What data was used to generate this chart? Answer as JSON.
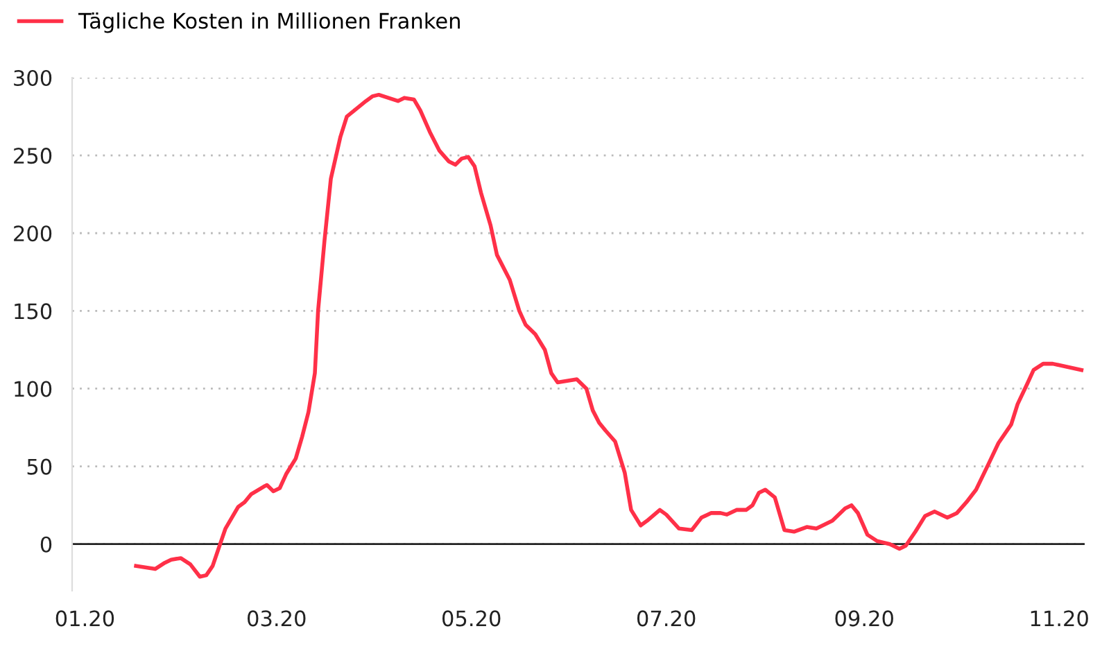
{
  "chart_data": {
    "type": "line",
    "legend": "top left",
    "grid": "y",
    "line_style": "solid",
    "marker": "none",
    "x": [
      "2020-01-17",
      "2020-01-23",
      "2020-01-26",
      "2020-01-28",
      "2020-01-31",
      "2020-02-03",
      "2020-02-06",
      "2020-02-08",
      "2020-02-10",
      "2020-02-12",
      "2020-02-14",
      "2020-02-18",
      "2020-02-20",
      "2020-02-22",
      "2020-02-26",
      "2020-02-27",
      "2020-02-29",
      "2020-03-02",
      "2020-03-04",
      "2020-03-07",
      "2020-03-09",
      "2020-03-11",
      "2020-03-13",
      "2020-03-14",
      "2020-03-16",
      "2020-03-18",
      "2020-03-21",
      "2020-03-23",
      "2020-03-26",
      "2020-03-29",
      "2020-03-31",
      "2020-04-02",
      "2020-04-05",
      "2020-04-08",
      "2020-04-10",
      "2020-04-13",
      "2020-04-15",
      "2020-04-18",
      "2020-04-21",
      "2020-04-24",
      "2020-04-26",
      "2020-04-28",
      "2020-04-30",
      "2020-05-02",
      "2020-05-04",
      "2020-05-07",
      "2020-05-09",
      "2020-05-13",
      "2020-05-16",
      "2020-05-18",
      "2020-05-21",
      "2020-05-24",
      "2020-05-26",
      "2020-05-28",
      "2020-05-31",
      "2020-06-03",
      "2020-06-06",
      "2020-06-08",
      "2020-06-10",
      "2020-06-12",
      "2020-06-15",
      "2020-06-18",
      "2020-06-20",
      "2020-06-23",
      "2020-06-25",
      "2020-06-29",
      "2020-07-01",
      "2020-07-05",
      "2020-07-09",
      "2020-07-12",
      "2020-07-15",
      "2020-07-18",
      "2020-07-20",
      "2020-07-23",
      "2020-07-26",
      "2020-07-28",
      "2020-07-30",
      "2020-08-01",
      "2020-08-04",
      "2020-08-07",
      "2020-08-10",
      "2020-08-14",
      "2020-08-17",
      "2020-08-20",
      "2020-08-22",
      "2020-08-26",
      "2020-08-28",
      "2020-08-30",
      "2020-09-02",
      "2020-09-05",
      "2020-09-09",
      "2020-09-12",
      "2020-09-14",
      "2020-09-17",
      "2020-09-20",
      "2020-09-23",
      "2020-09-27",
      "2020-09-30",
      "2020-10-03",
      "2020-10-06",
      "2020-10-10",
      "2020-10-13",
      "2020-10-17",
      "2020-10-19",
      "2020-10-22",
      "2020-10-24",
      "2020-10-27",
      "2020-10-30",
      "2020-11-08"
    ],
    "series": [
      {
        "name": "Tägliche Kosten in Millionen Franken",
        "color": "#ff3048",
        "values": [
          -14,
          -16,
          -12,
          -10,
          -9,
          -13,
          -21,
          -20,
          -14,
          -2,
          10,
          24,
          27,
          32,
          37,
          38,
          34,
          36,
          45,
          55,
          69,
          85,
          110,
          150,
          195,
          235,
          262,
          275,
          280,
          285,
          288,
          289,
          287,
          285,
          287,
          286,
          279,
          265,
          253,
          246,
          244,
          248,
          249,
          243,
          226,
          205,
          186,
          170,
          150,
          141,
          135,
          125,
          110,
          104,
          105,
          106,
          100,
          86,
          78,
          73,
          66,
          46,
          22,
          12,
          15,
          22,
          19,
          10,
          9,
          17,
          20,
          20,
          19,
          22,
          22,
          25,
          33,
          35,
          30,
          9,
          8,
          11,
          10,
          13,
          15,
          23,
          25,
          20,
          6,
          2,
          0,
          -3,
          -1,
          8,
          18,
          21,
          17,
          20,
          27,
          35,
          52,
          65,
          77,
          90,
          103,
          112,
          116,
          116,
          112
        ]
      }
    ],
    "xlim": [
      "2019-12-28",
      "2020-11-09"
    ],
    "xticks": [
      {
        "value": "2020-01-01",
        "label": "01.20"
      },
      {
        "value": "2020-03-01",
        "label": "03.20"
      },
      {
        "value": "2020-05-01",
        "label": "05.20"
      },
      {
        "value": "2020-07-01",
        "label": "07.20"
      },
      {
        "value": "2020-09-01",
        "label": "09.20"
      },
      {
        "value": "2020-11-01",
        "label": "11.20"
      }
    ],
    "ylim": [
      -30,
      300
    ],
    "yticks": [
      0,
      50,
      100,
      150,
      200,
      250,
      300
    ],
    "ref_lines": [
      {
        "axis": "y",
        "value": 0,
        "color": "#222222"
      }
    ]
  }
}
